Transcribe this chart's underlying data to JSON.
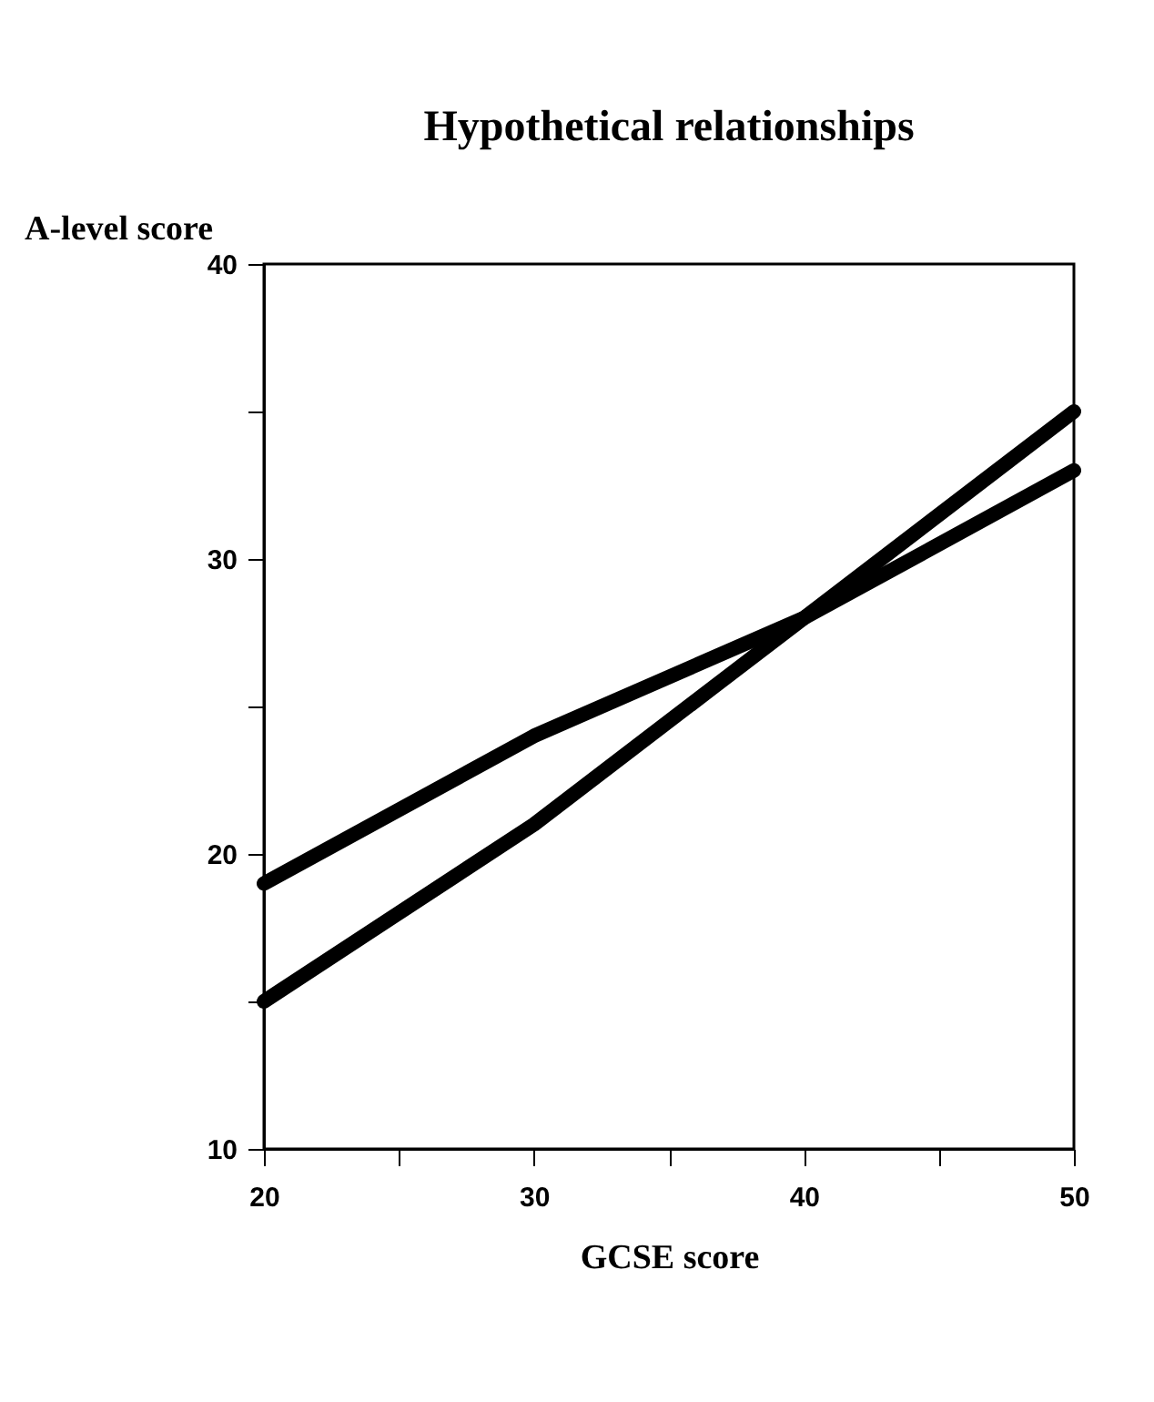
{
  "chart_data": {
    "type": "line",
    "title": "Hypothetical relationships",
    "xlabel": "GCSE score",
    "ylabel": "A-level score",
    "x": [
      20,
      30,
      40,
      50
    ],
    "series": [
      {
        "color": "#000000",
        "values": [
          19,
          24,
          28,
          33
        ]
      },
      {
        "color": "#000000",
        "values": [
          15,
          21,
          28,
          35
        ]
      }
    ],
    "xlim": [
      20,
      50
    ],
    "xticks": [
      20,
      {
        "value": 25,
        "label": null
      },
      30,
      {
        "value": 35,
        "label": null
      },
      40,
      {
        "value": 45,
        "label": null
      },
      50
    ],
    "ylim": [
      10,
      40
    ],
    "yticks": [
      10,
      {
        "value": 15,
        "label": null
      },
      20,
      {
        "value": 25,
        "label": null
      },
      30,
      {
        "value": 35,
        "label": null
      },
      40
    ],
    "legend": false,
    "grid": false,
    "marker": "none",
    "line_style": "solid"
  }
}
